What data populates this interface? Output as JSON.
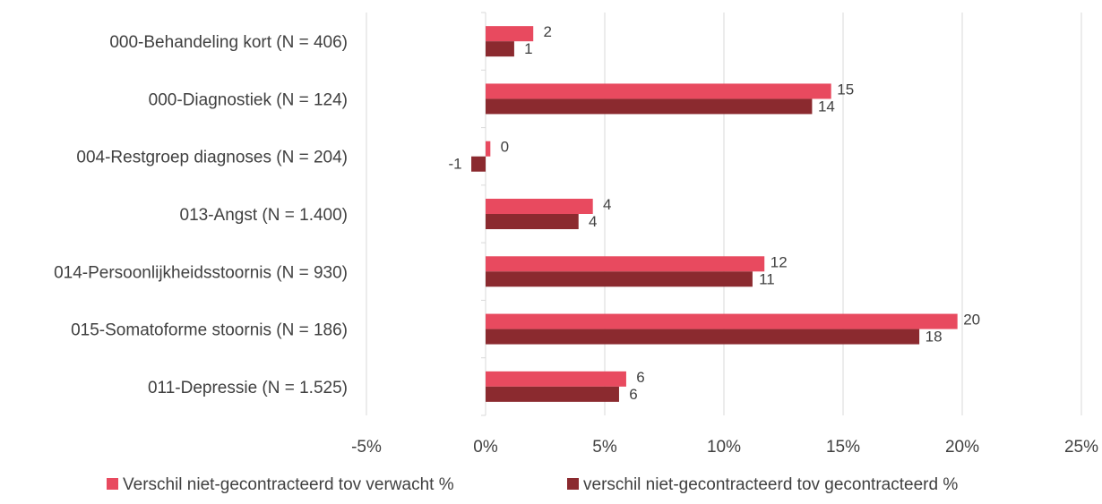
{
  "chart_data": {
    "type": "bar",
    "orientation": "horizontal",
    "categories": [
      "000-Behandeling kort (N = 406)",
      "000-Diagnostiek (N = 124)",
      "004-Restgroep diagnoses (N = 204)",
      "013-Angst (N = 1.400)",
      "014-Persoonlijkheidsstoornis (N = 930)",
      "015-Somatoforme stoornis (N = 186)",
      "011-Depressie (N = 1.525)"
    ],
    "series": [
      {
        "name": "Verschil niet-gecontracteerd tov verwacht %",
        "color": "#e84a5f",
        "values": [
          2.0,
          14.5,
          0.2,
          4.5,
          11.7,
          19.8,
          5.9
        ],
        "labels": [
          "2",
          "15",
          "0",
          "4",
          "12",
          "20",
          "6"
        ]
      },
      {
        "name": "verschil niet-gecontracteerd tov gecontracteerd %",
        "color": "#8b2a2f",
        "values": [
          1.2,
          13.7,
          -0.6,
          3.9,
          11.2,
          18.2,
          5.6
        ],
        "labels": [
          "1",
          "14",
          "-1",
          "4",
          "11",
          "18",
          "6"
        ]
      }
    ],
    "xlim": [
      -5,
      25
    ],
    "xticks": [
      -5,
      0,
      5,
      10,
      15,
      20,
      25
    ],
    "xtick_labels": [
      "-5%",
      "0%",
      "5%",
      "10%",
      "15%",
      "20%",
      "25%"
    ],
    "grid": true,
    "legend": "bottom"
  }
}
